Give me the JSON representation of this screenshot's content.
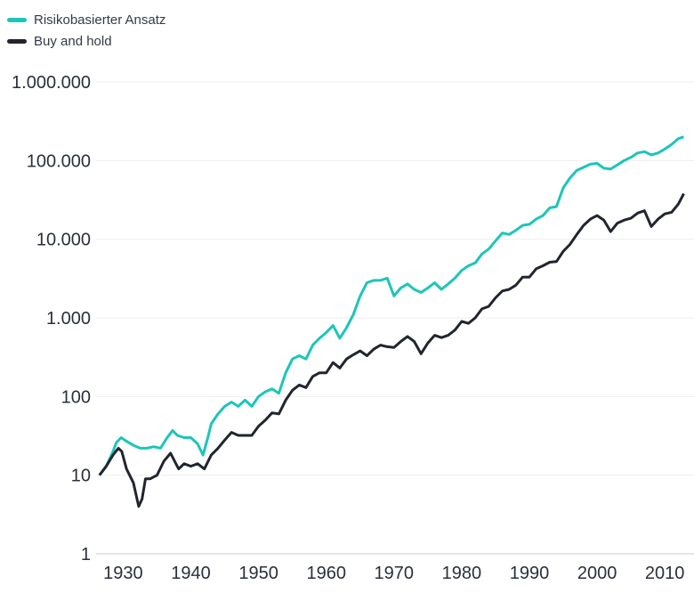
{
  "chart_data": {
    "type": "line",
    "title": "",
    "xlabel": "",
    "ylabel": "",
    "y_scale": "log",
    "ylim": [
      1,
      1000000
    ],
    "xlim": [
      1926,
      2013
    ],
    "grid": true,
    "legend_position": "top-left",
    "y_ticks": [
      {
        "value": 1,
        "label": "1"
      },
      {
        "value": 10,
        "label": "10"
      },
      {
        "value": 100,
        "label": "100"
      },
      {
        "value": 1000,
        "label": "1.000"
      },
      {
        "value": 10000,
        "label": "10.000"
      },
      {
        "value": 100000,
        "label": "100.000"
      },
      {
        "value": 1000000,
        "label": "1.000.000"
      }
    ],
    "x_ticks": [
      {
        "value": 1930,
        "label": "1930"
      },
      {
        "value": 1940,
        "label": "1940"
      },
      {
        "value": 1950,
        "label": "1950"
      },
      {
        "value": 1960,
        "label": "1960"
      },
      {
        "value": 1970,
        "label": "1970"
      },
      {
        "value": 1980,
        "label": "1980"
      },
      {
        "value": 1990,
        "label": "1990"
      },
      {
        "value": 2000,
        "label": "2000"
      },
      {
        "value": 2010,
        "label": "2010"
      }
    ],
    "series": [
      {
        "name": "Risikobasierter Ansatz",
        "color": "#1cc6b8",
        "points": [
          [
            1926.5,
            10
          ],
          [
            1927.5,
            13
          ],
          [
            1928.5,
            20
          ],
          [
            1929,
            26
          ],
          [
            1929.7,
            30
          ],
          [
            1930.5,
            27
          ],
          [
            1931.5,
            24
          ],
          [
            1932.5,
            22
          ],
          [
            1933.5,
            22
          ],
          [
            1934.5,
            23
          ],
          [
            1935.5,
            22
          ],
          [
            1936.5,
            30
          ],
          [
            1937.3,
            37
          ],
          [
            1938,
            32
          ],
          [
            1939,
            30
          ],
          [
            1940,
            30
          ],
          [
            1941,
            25
          ],
          [
            1941.8,
            18
          ],
          [
            1942.5,
            30
          ],
          [
            1943,
            45
          ],
          [
            1944,
            60
          ],
          [
            1945,
            75
          ],
          [
            1946,
            85
          ],
          [
            1947,
            75
          ],
          [
            1948,
            90
          ],
          [
            1949,
            75
          ],
          [
            1950,
            100
          ],
          [
            1951,
            115
          ],
          [
            1952,
            125
          ],
          [
            1953,
            110
          ],
          [
            1954,
            200
          ],
          [
            1955,
            300
          ],
          [
            1956,
            330
          ],
          [
            1957,
            300
          ],
          [
            1958,
            450
          ],
          [
            1959,
            550
          ],
          [
            1960,
            650
          ],
          [
            1961,
            800
          ],
          [
            1962,
            550
          ],
          [
            1963,
            750
          ],
          [
            1964,
            1100
          ],
          [
            1965,
            1900
          ],
          [
            1966,
            2800
          ],
          [
            1967,
            3000
          ],
          [
            1968,
            3000
          ],
          [
            1969,
            3200
          ],
          [
            1970,
            1900
          ],
          [
            1971,
            2400
          ],
          [
            1972,
            2700
          ],
          [
            1973,
            2300
          ],
          [
            1974,
            2100
          ],
          [
            1975,
            2400
          ],
          [
            1976,
            2800
          ],
          [
            1977,
            2300
          ],
          [
            1978,
            2700
          ],
          [
            1979,
            3200
          ],
          [
            1980,
            4000
          ],
          [
            1981,
            4600
          ],
          [
            1982,
            5000
          ],
          [
            1983,
            6500
          ],
          [
            1984,
            7500
          ],
          [
            1985,
            9500
          ],
          [
            1986,
            12000
          ],
          [
            1987,
            11500
          ],
          [
            1988,
            13000
          ],
          [
            1989,
            15000
          ],
          [
            1990,
            15500
          ],
          [
            1991,
            18000
          ],
          [
            1992,
            20000
          ],
          [
            1993,
            25000
          ],
          [
            1994,
            26000
          ],
          [
            1995,
            45000
          ],
          [
            1996,
            60000
          ],
          [
            1997,
            75000
          ],
          [
            1998,
            82000
          ],
          [
            1999,
            90000
          ],
          [
            2000,
            92000
          ],
          [
            2001,
            80000
          ],
          [
            2002,
            78000
          ],
          [
            2003,
            88000
          ],
          [
            2004,
            100000
          ],
          [
            2005,
            110000
          ],
          [
            2006,
            125000
          ],
          [
            2007,
            130000
          ],
          [
            2008,
            118000
          ],
          [
            2009,
            125000
          ],
          [
            2010,
            140000
          ],
          [
            2011,
            160000
          ],
          [
            2012,
            190000
          ],
          [
            2012.8,
            200000
          ]
        ]
      },
      {
        "name": "Buy and hold",
        "color": "#22252e",
        "points": [
          [
            1926.5,
            10
          ],
          [
            1927.5,
            13
          ],
          [
            1928.5,
            18
          ],
          [
            1929.3,
            22
          ],
          [
            1929.8,
            20
          ],
          [
            1930.5,
            12
          ],
          [
            1931.5,
            8
          ],
          [
            1932.3,
            4
          ],
          [
            1932.8,
            5
          ],
          [
            1933.3,
            9
          ],
          [
            1934,
            9
          ],
          [
            1935,
            10
          ],
          [
            1936,
            15
          ],
          [
            1937,
            19
          ],
          [
            1937.6,
            15
          ],
          [
            1938.2,
            12
          ],
          [
            1939,
            14
          ],
          [
            1940,
            13
          ],
          [
            1941,
            14
          ],
          [
            1942,
            12
          ],
          [
            1943,
            18
          ],
          [
            1944,
            22
          ],
          [
            1945,
            28
          ],
          [
            1946,
            35
          ],
          [
            1947,
            32
          ],
          [
            1948,
            32
          ],
          [
            1949,
            32
          ],
          [
            1950,
            42
          ],
          [
            1951,
            50
          ],
          [
            1952,
            62
          ],
          [
            1953,
            60
          ],
          [
            1954,
            90
          ],
          [
            1955,
            120
          ],
          [
            1956,
            140
          ],
          [
            1957,
            130
          ],
          [
            1958,
            180
          ],
          [
            1959,
            200
          ],
          [
            1960,
            200
          ],
          [
            1961,
            270
          ],
          [
            1962,
            230
          ],
          [
            1963,
            300
          ],
          [
            1964,
            340
          ],
          [
            1965,
            380
          ],
          [
            1966,
            330
          ],
          [
            1967,
            400
          ],
          [
            1968,
            450
          ],
          [
            1969,
            430
          ],
          [
            1970,
            420
          ],
          [
            1971,
            500
          ],
          [
            1972,
            580
          ],
          [
            1973,
            500
          ],
          [
            1974,
            350
          ],
          [
            1975,
            480
          ],
          [
            1976,
            600
          ],
          [
            1977,
            560
          ],
          [
            1978,
            600
          ],
          [
            1979,
            700
          ],
          [
            1980,
            900
          ],
          [
            1981,
            850
          ],
          [
            1982,
            1000
          ],
          [
            1983,
            1300
          ],
          [
            1984,
            1400
          ],
          [
            1985,
            1800
          ],
          [
            1986,
            2200
          ],
          [
            1987,
            2300
          ],
          [
            1988,
            2600
          ],
          [
            1989,
            3300
          ],
          [
            1990,
            3300
          ],
          [
            1991,
            4200
          ],
          [
            1992,
            4600
          ],
          [
            1993,
            5100
          ],
          [
            1994,
            5200
          ],
          [
            1995,
            7000
          ],
          [
            1996,
            8600
          ],
          [
            1997,
            11500
          ],
          [
            1998,
            15000
          ],
          [
            1999,
            18000
          ],
          [
            2000,
            20000
          ],
          [
            2001,
            17500
          ],
          [
            2002,
            12500
          ],
          [
            2003,
            16000
          ],
          [
            2004,
            17500
          ],
          [
            2005,
            18500
          ],
          [
            2006,
            21500
          ],
          [
            2007,
            23000
          ],
          [
            2008,
            14500
          ],
          [
            2009,
            18000
          ],
          [
            2010,
            21000
          ],
          [
            2011,
            22000
          ],
          [
            2012,
            28000
          ],
          [
            2012.8,
            38000
          ]
        ]
      }
    ]
  }
}
